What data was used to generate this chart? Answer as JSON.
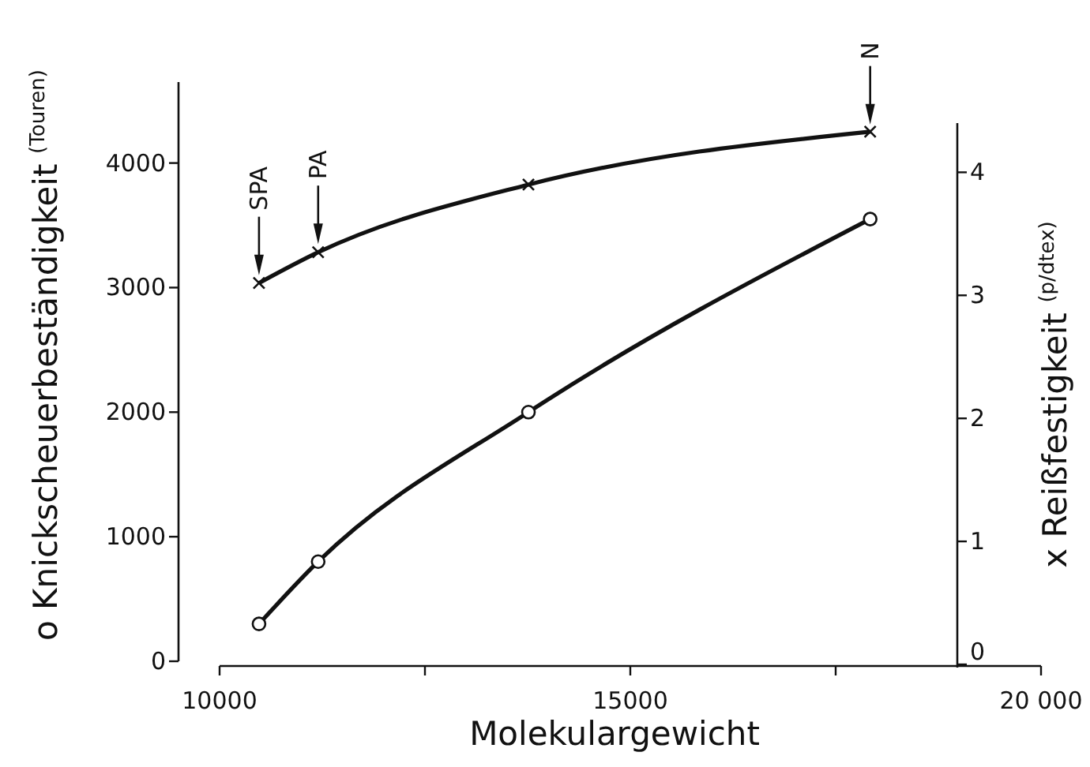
{
  "chart_data": {
    "type": "line",
    "xlabel": "Molekulargewicht",
    "ylabel": "o Knickscheuerbeständigkeit $^{(Touren)}$",
    "y2label": "x Reißfestigkeit $^{(p/dtex)}$",
    "x": [
      10480,
      11200,
      13760,
      17920
    ],
    "xlim": [
      10000,
      20000
    ],
    "xticks": [
      10000,
      {
        "value": 12500,
        "label": null
      },
      15000,
      {
        "value": 17500,
        "label": null
      },
      {
        "value": 20000,
        "label": "20 000"
      }
    ],
    "ylim": [
      0,
      4650
    ],
    "yticks": [
      0,
      1000,
      2000,
      3000,
      4000
    ],
    "y2lim": [
      0,
      4.4
    ],
    "y2ticks": [
      0,
      1,
      2,
      3,
      4
    ],
    "series": [
      {
        "color": "#111111",
        "marker": "circle",
        "values": [
          300,
          800,
          2000,
          3550
        ]
      },
      {
        "color": "#111111",
        "marker": "cross",
        "axis": "y2",
        "values": [
          3.1,
          3.35,
          3.9,
          4.33
        ]
      }
    ],
    "annotations": [
      {
        "text": "SPA",
        "x": 10480,
        "y": 3100
      },
      {
        "text": "PA",
        "x": 11200,
        "y": 3350
      },
      {
        "text": "N",
        "x": 17920,
        "y": 4310
      }
    ],
    "grid": false,
    "line_style": "solid"
  }
}
